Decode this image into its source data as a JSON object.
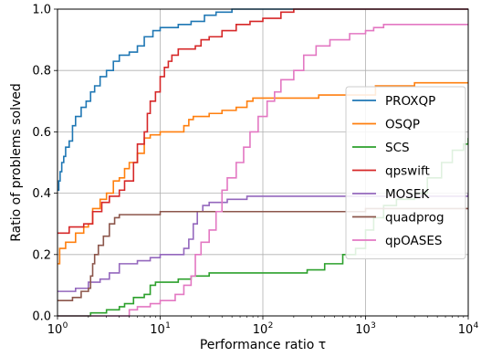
{
  "chart_data": {
    "type": "line",
    "step": true,
    "xscale": "log",
    "xlim": [
      1,
      10000
    ],
    "ylim": [
      0,
      1
    ],
    "grid": true,
    "xlabel": "Performance ratio τ",
    "ylabel": "Ratio of problems solved",
    "xticks": [
      1,
      10,
      100,
      1000,
      10000
    ],
    "xtick_labels": [
      [
        "10",
        "0"
      ],
      [
        "10",
        "1"
      ],
      [
        "10",
        "2"
      ],
      [
        "10",
        "3"
      ],
      [
        "10",
        "4"
      ]
    ],
    "yticks": [
      0.0,
      0.2,
      0.4,
      0.6,
      0.8,
      1.0
    ],
    "ytick_labels": [
      "0.0",
      "0.2",
      "0.4",
      "0.6",
      "0.8",
      "1.0"
    ],
    "legend_position": "center-right",
    "series": [
      {
        "name": "PROXQP",
        "color": "#1f77b4",
        "points": [
          [
            1,
            0.41
          ],
          [
            1.03,
            0.44
          ],
          [
            1.06,
            0.47
          ],
          [
            1.1,
            0.5
          ],
          [
            1.15,
            0.52
          ],
          [
            1.2,
            0.55
          ],
          [
            1.3,
            0.57
          ],
          [
            1.4,
            0.62
          ],
          [
            1.5,
            0.65
          ],
          [
            1.7,
            0.68
          ],
          [
            1.9,
            0.7
          ],
          [
            2.1,
            0.73
          ],
          [
            2.3,
            0.75
          ],
          [
            2.6,
            0.78
          ],
          [
            3,
            0.8
          ],
          [
            3.5,
            0.83
          ],
          [
            4,
            0.85
          ],
          [
            5,
            0.86
          ],
          [
            6,
            0.88
          ],
          [
            7,
            0.91
          ],
          [
            8.5,
            0.93
          ],
          [
            10,
            0.94
          ],
          [
            15,
            0.95
          ],
          [
            20,
            0.96
          ],
          [
            27,
            0.98
          ],
          [
            35,
            0.99
          ],
          [
            50,
            1.0
          ],
          [
            10000,
            1.0
          ]
        ]
      },
      {
        "name": "OSQP",
        "color": "#ff7f0e",
        "points": [
          [
            1,
            0.17
          ],
          [
            1.05,
            0.22
          ],
          [
            1.2,
            0.24
          ],
          [
            1.5,
            0.27
          ],
          [
            1.8,
            0.29
          ],
          [
            2.0,
            0.3
          ],
          [
            2.2,
            0.35
          ],
          [
            2.6,
            0.38
          ],
          [
            3.0,
            0.4
          ],
          [
            3.5,
            0.44
          ],
          [
            4.0,
            0.45
          ],
          [
            4.5,
            0.48
          ],
          [
            5,
            0.5
          ],
          [
            6,
            0.53
          ],
          [
            7,
            0.58
          ],
          [
            8,
            0.59
          ],
          [
            10,
            0.6
          ],
          [
            15,
            0.6
          ],
          [
            17,
            0.62
          ],
          [
            19,
            0.64
          ],
          [
            21,
            0.65
          ],
          [
            25,
            0.65
          ],
          [
            30,
            0.66
          ],
          [
            40,
            0.67
          ],
          [
            55,
            0.68
          ],
          [
            70,
            0.7
          ],
          [
            80,
            0.71
          ],
          [
            200,
            0.71
          ],
          [
            350,
            0.72
          ],
          [
            1000,
            0.72
          ],
          [
            1250,
            0.75
          ],
          [
            3000,
            0.76
          ],
          [
            10000,
            0.76
          ]
        ]
      },
      {
        "name": "SCS",
        "color": "#2ca02c",
        "points": [
          [
            1,
            0
          ],
          [
            2,
            0
          ],
          [
            2.1,
            0.01
          ],
          [
            3,
            0.02
          ],
          [
            4,
            0.03
          ],
          [
            4.5,
            0.04
          ],
          [
            5.5,
            0.06
          ],
          [
            7,
            0.07
          ],
          [
            8,
            0.1
          ],
          [
            9,
            0.11
          ],
          [
            12,
            0.11
          ],
          [
            15,
            0.12
          ],
          [
            20,
            0.13
          ],
          [
            30,
            0.14
          ],
          [
            60,
            0.14
          ],
          [
            150,
            0.14
          ],
          [
            270,
            0.15
          ],
          [
            400,
            0.17
          ],
          [
            600,
            0.2
          ],
          [
            800,
            0.22
          ],
          [
            1000,
            0.28
          ],
          [
            1200,
            0.32
          ],
          [
            1500,
            0.36
          ],
          [
            2000,
            0.38
          ],
          [
            3000,
            0.4
          ],
          [
            4000,
            0.45
          ],
          [
            5500,
            0.5
          ],
          [
            7000,
            0.54
          ],
          [
            9000,
            0.56
          ],
          [
            10000,
            0.58
          ]
        ]
      },
      {
        "name": "qpswift",
        "color": "#d62728",
        "points": [
          [
            1,
            0.27
          ],
          [
            1.3,
            0.29
          ],
          [
            1.8,
            0.3
          ],
          [
            2.2,
            0.34
          ],
          [
            2.7,
            0.37
          ],
          [
            3.2,
            0.39
          ],
          [
            4,
            0.41
          ],
          [
            4.5,
            0.44
          ],
          [
            5.5,
            0.5
          ],
          [
            6,
            0.56
          ],
          [
            7,
            0.6
          ],
          [
            7.5,
            0.66
          ],
          [
            8,
            0.7
          ],
          [
            9,
            0.73
          ],
          [
            10,
            0.78
          ],
          [
            11,
            0.81
          ],
          [
            12,
            0.83
          ],
          [
            13,
            0.85
          ],
          [
            15,
            0.87
          ],
          [
            20,
            0.87
          ],
          [
            22,
            0.88
          ],
          [
            25,
            0.9
          ],
          [
            30,
            0.91
          ],
          [
            40,
            0.93
          ],
          [
            55,
            0.95
          ],
          [
            75,
            0.96
          ],
          [
            100,
            0.97
          ],
          [
            150,
            0.99
          ],
          [
            200,
            1.0
          ],
          [
            10000,
            1.0
          ]
        ]
      },
      {
        "name": "MOSEK",
        "color": "#9467bd",
        "points": [
          [
            1,
            0.08
          ],
          [
            1.5,
            0.09
          ],
          [
            2.0,
            0.11
          ],
          [
            2.6,
            0.12
          ],
          [
            3.2,
            0.14
          ],
          [
            4,
            0.17
          ],
          [
            6,
            0.18
          ],
          [
            8,
            0.19
          ],
          [
            10,
            0.2
          ],
          [
            14,
            0.2
          ],
          [
            17,
            0.22
          ],
          [
            19,
            0.25
          ],
          [
            21,
            0.3
          ],
          [
            23,
            0.34
          ],
          [
            26,
            0.36
          ],
          [
            30,
            0.37
          ],
          [
            45,
            0.38
          ],
          [
            70,
            0.39
          ],
          [
            150,
            0.39
          ],
          [
            1000,
            0.39
          ],
          [
            10000,
            0.4
          ]
        ]
      },
      {
        "name": "quadprog",
        "color": "#8c564b",
        "points": [
          [
            1,
            0.05
          ],
          [
            1.4,
            0.06
          ],
          [
            1.7,
            0.08
          ],
          [
            2.0,
            0.09
          ],
          [
            2.1,
            0.13
          ],
          [
            2.2,
            0.17
          ],
          [
            2.3,
            0.2
          ],
          [
            2.5,
            0.23
          ],
          [
            2.8,
            0.26
          ],
          [
            3.2,
            0.3
          ],
          [
            3.6,
            0.32
          ],
          [
            4.0,
            0.33
          ],
          [
            4.6,
            0.33
          ],
          [
            5.5,
            0.33
          ],
          [
            10,
            0.34
          ],
          [
            100,
            0.34
          ],
          [
            1000,
            0.35
          ],
          [
            10000,
            0.35
          ]
        ]
      },
      {
        "name": "qpOASES",
        "color": "#e377c2",
        "points": [
          [
            1,
            0
          ],
          [
            4,
            0
          ],
          [
            5,
            0.02
          ],
          [
            6,
            0.03
          ],
          [
            8,
            0.04
          ],
          [
            10,
            0.05
          ],
          [
            14,
            0.07
          ],
          [
            17,
            0.1
          ],
          [
            20,
            0.13
          ],
          [
            22,
            0.2
          ],
          [
            25,
            0.24
          ],
          [
            30,
            0.28
          ],
          [
            35,
            0.34
          ],
          [
            40,
            0.41
          ],
          [
            45,
            0.45
          ],
          [
            55,
            0.5
          ],
          [
            65,
            0.55
          ],
          [
            75,
            0.6
          ],
          [
            90,
            0.65
          ],
          [
            110,
            0.7
          ],
          [
            130,
            0.73
          ],
          [
            150,
            0.77
          ],
          [
            200,
            0.8
          ],
          [
            250,
            0.85
          ],
          [
            330,
            0.88
          ],
          [
            450,
            0.9
          ],
          [
            700,
            0.92
          ],
          [
            1000,
            0.93
          ],
          [
            1200,
            0.94
          ],
          [
            1500,
            0.95
          ],
          [
            10000,
            0.95
          ]
        ]
      }
    ]
  }
}
